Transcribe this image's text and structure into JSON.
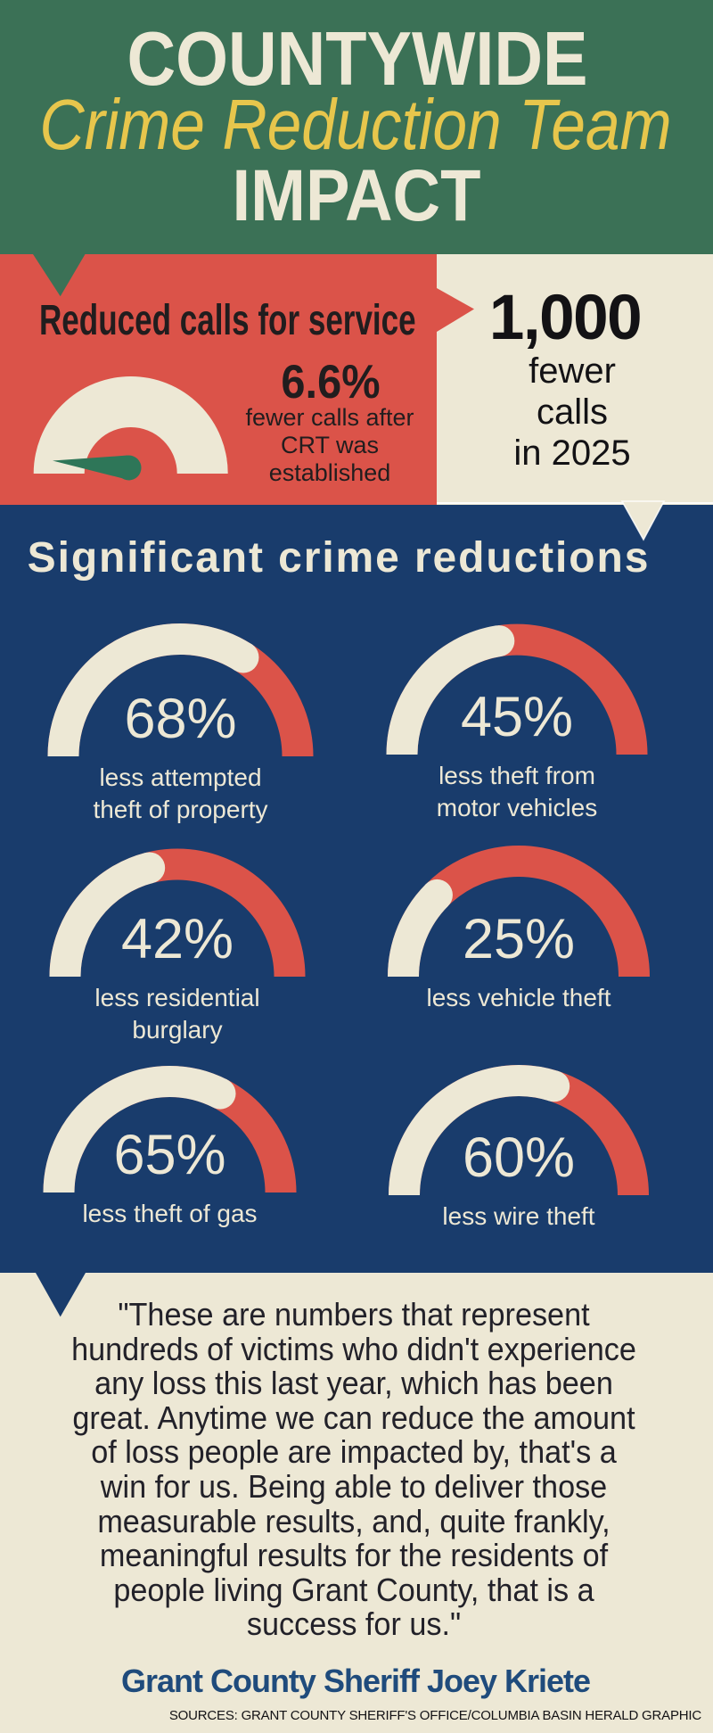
{
  "title_block": {
    "line1": "COUNTYWIDE",
    "line2": "Crime Reduction Team",
    "line3": "IMPACT"
  },
  "calls": {
    "heading": "Reduced calls for service",
    "stat_value": "6.6%",
    "stat_caption_lines": [
      "fewer calls after",
      "CRT was",
      "established"
    ],
    "big_stat": "1,000",
    "big_stat_lines": [
      "fewer",
      "calls",
      "in 2025"
    ]
  },
  "reductions": {
    "heading": "Significant crime reductions",
    "gauges": [
      {
        "display": "68%",
        "value": 68,
        "label_lines": [
          "less attempted",
          "theft of property"
        ]
      },
      {
        "display": "45%",
        "value": 45,
        "label_lines": [
          "less theft from",
          "motor vehicles"
        ]
      },
      {
        "display": "42%",
        "value": 42,
        "label_lines": [
          "less residential",
          "burglary"
        ]
      },
      {
        "display": "25%",
        "value": 25,
        "label_lines": [
          "less vehicle theft"
        ]
      },
      {
        "display": "65%",
        "value": 65,
        "label_lines": [
          "less theft of gas"
        ]
      },
      {
        "display": "60%",
        "value": 60,
        "label_lines": [
          "less wire theft"
        ]
      }
    ]
  },
  "quote": {
    "lines": [
      "\"These are numbers that represent",
      "hundreds of victims who didn't experience",
      "any loss this last year, which has been",
      "great. Anytime we can reduce the amount",
      "of loss people are impacted by, that's a",
      "win for us. Being able to deliver those",
      "measurable results, and, quite frankly,",
      "meaningful results for the residents of",
      "people living Grant County, that is a",
      "success for us.\""
    ],
    "attribution": "Grant County Sheriff Joey Kriete"
  },
  "footer": {
    "sources": "SOURCES: GRANT COUNTY SHERIFF'S OFFICE/COLUMBIA BASIN HERALD GRAPHIC"
  },
  "colors": {
    "green": "#3B7156",
    "red": "#DB5349",
    "navy": "#193C6C",
    "cream": "#EDE8D5",
    "yellow": "#E7C64C",
    "needle_green": "#2E7658",
    "dark_text": "#211D1E",
    "black_text": "#131215",
    "quote_text": "#222129",
    "attribution_navy": "#1F4B7C"
  },
  "chart_data": [
    {
      "type": "gauge",
      "title": "Reduced calls for service",
      "value": 6.6,
      "unit": "%",
      "min": 0,
      "max": 100,
      "annotation": "6.6% fewer calls after CRT was established",
      "related_stat": "1,000 fewer calls in 2025"
    },
    {
      "type": "gauge",
      "title": "Significant crime reductions",
      "unit": "%",
      "min": 0,
      "max": 100,
      "series": [
        {
          "label": "less attempted theft of property",
          "value": 68
        },
        {
          "label": "less theft from motor vehicles",
          "value": 45
        },
        {
          "label": "less residential burglary",
          "value": 42
        },
        {
          "label": "less vehicle theft",
          "value": 25
        },
        {
          "label": "less theft of gas",
          "value": 65
        },
        {
          "label": "less wire theft",
          "value": 60
        }
      ]
    }
  ]
}
